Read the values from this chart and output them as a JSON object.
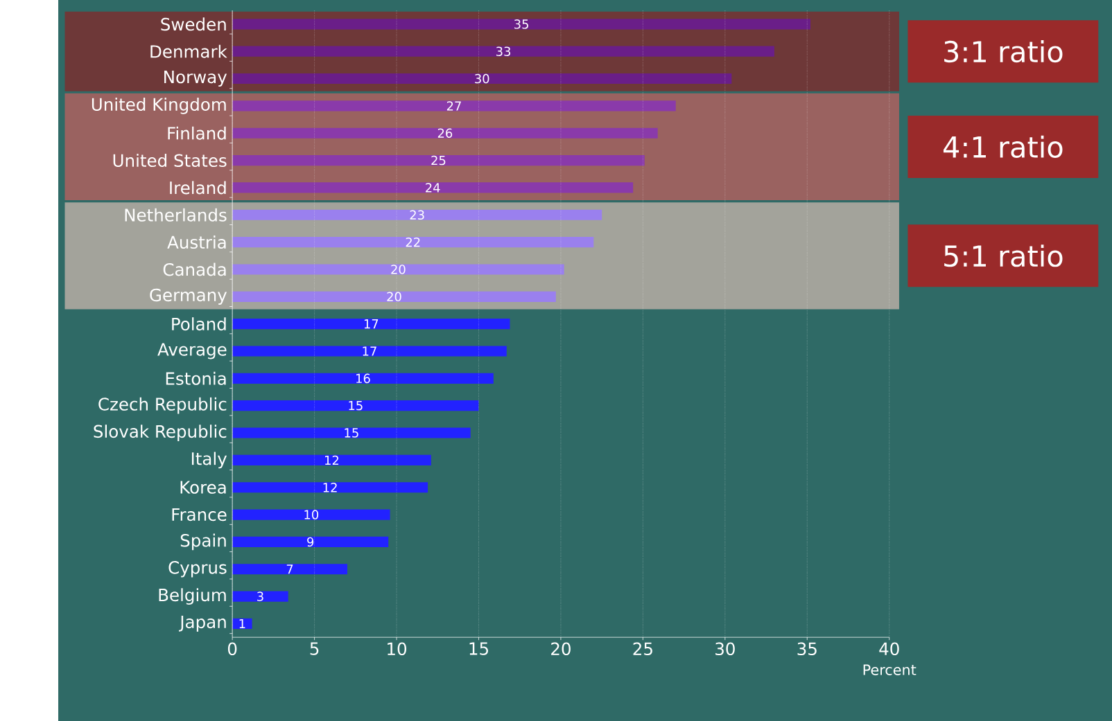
{
  "chart_data": {
    "type": "bar",
    "orientation": "horizontal",
    "categories": [
      "Sweden",
      "Denmark",
      "Norway",
      "United Kingdom",
      "Finland",
      "United States",
      "Ireland",
      "Netherlands",
      "Austria",
      "Canada",
      "Germany",
      "Poland",
      "Average",
      "Estonia",
      "Czech Republic",
      "Slovak Republic",
      "Italy",
      "Korea",
      "France",
      "Spain",
      "Cyprus",
      "Belgium",
      "Japan"
    ],
    "values": [
      35.2,
      33,
      30.4,
      27,
      25.9,
      25.1,
      24.4,
      22.5,
      22.0,
      20.2,
      19.7,
      16.9,
      16.7,
      15.9,
      15.0,
      14.5,
      12.1,
      11.9,
      9.6,
      9.5,
      7.0,
      3.4,
      1.2
    ],
    "value_labels": [
      "35",
      "33",
      "30",
      "27",
      "26",
      "25",
      "24",
      "23",
      "22",
      "20",
      "20",
      "17",
      "17",
      "16",
      "15",
      "15",
      "12",
      "12",
      "10",
      "9",
      "7",
      "3",
      "1"
    ],
    "colors": [
      "#6a1e88",
      "#6a1e88",
      "#6a1e88",
      "#8a3aaa",
      "#8a3aaa",
      "#8a3aaa",
      "#8a3aaa",
      "#9a80ee",
      "#9a80ee",
      "#9a80ee",
      "#9a80ee",
      "#2222ff",
      "#2222ff",
      "#2222ff",
      "#2222ff",
      "#2222ff",
      "#2222ff",
      "#2222ff",
      "#2222ff",
      "#2222ff",
      "#2222ff",
      "#2222ff",
      "#2222ff"
    ],
    "xlim": [
      0,
      40
    ],
    "xticks": [
      0,
      5,
      10,
      15,
      20,
      25,
      30,
      35,
      40
    ],
    "xlabel": "Percent",
    "grid": "x",
    "bands": [
      {
        "axis": "y",
        "from": "Sweden",
        "to": "Norway",
        "label": "3:1 ratio",
        "color": "#6e3838"
      },
      {
        "axis": "y",
        "from": "United Kingdom",
        "to": "Ireland",
        "label": "4:1 ratio",
        "color": "#9a6260"
      },
      {
        "axis": "y",
        "from": "Netherlands",
        "to": "Germany",
        "label": "5:1 ratio",
        "color": "#a3a39b"
      }
    ]
  }
}
